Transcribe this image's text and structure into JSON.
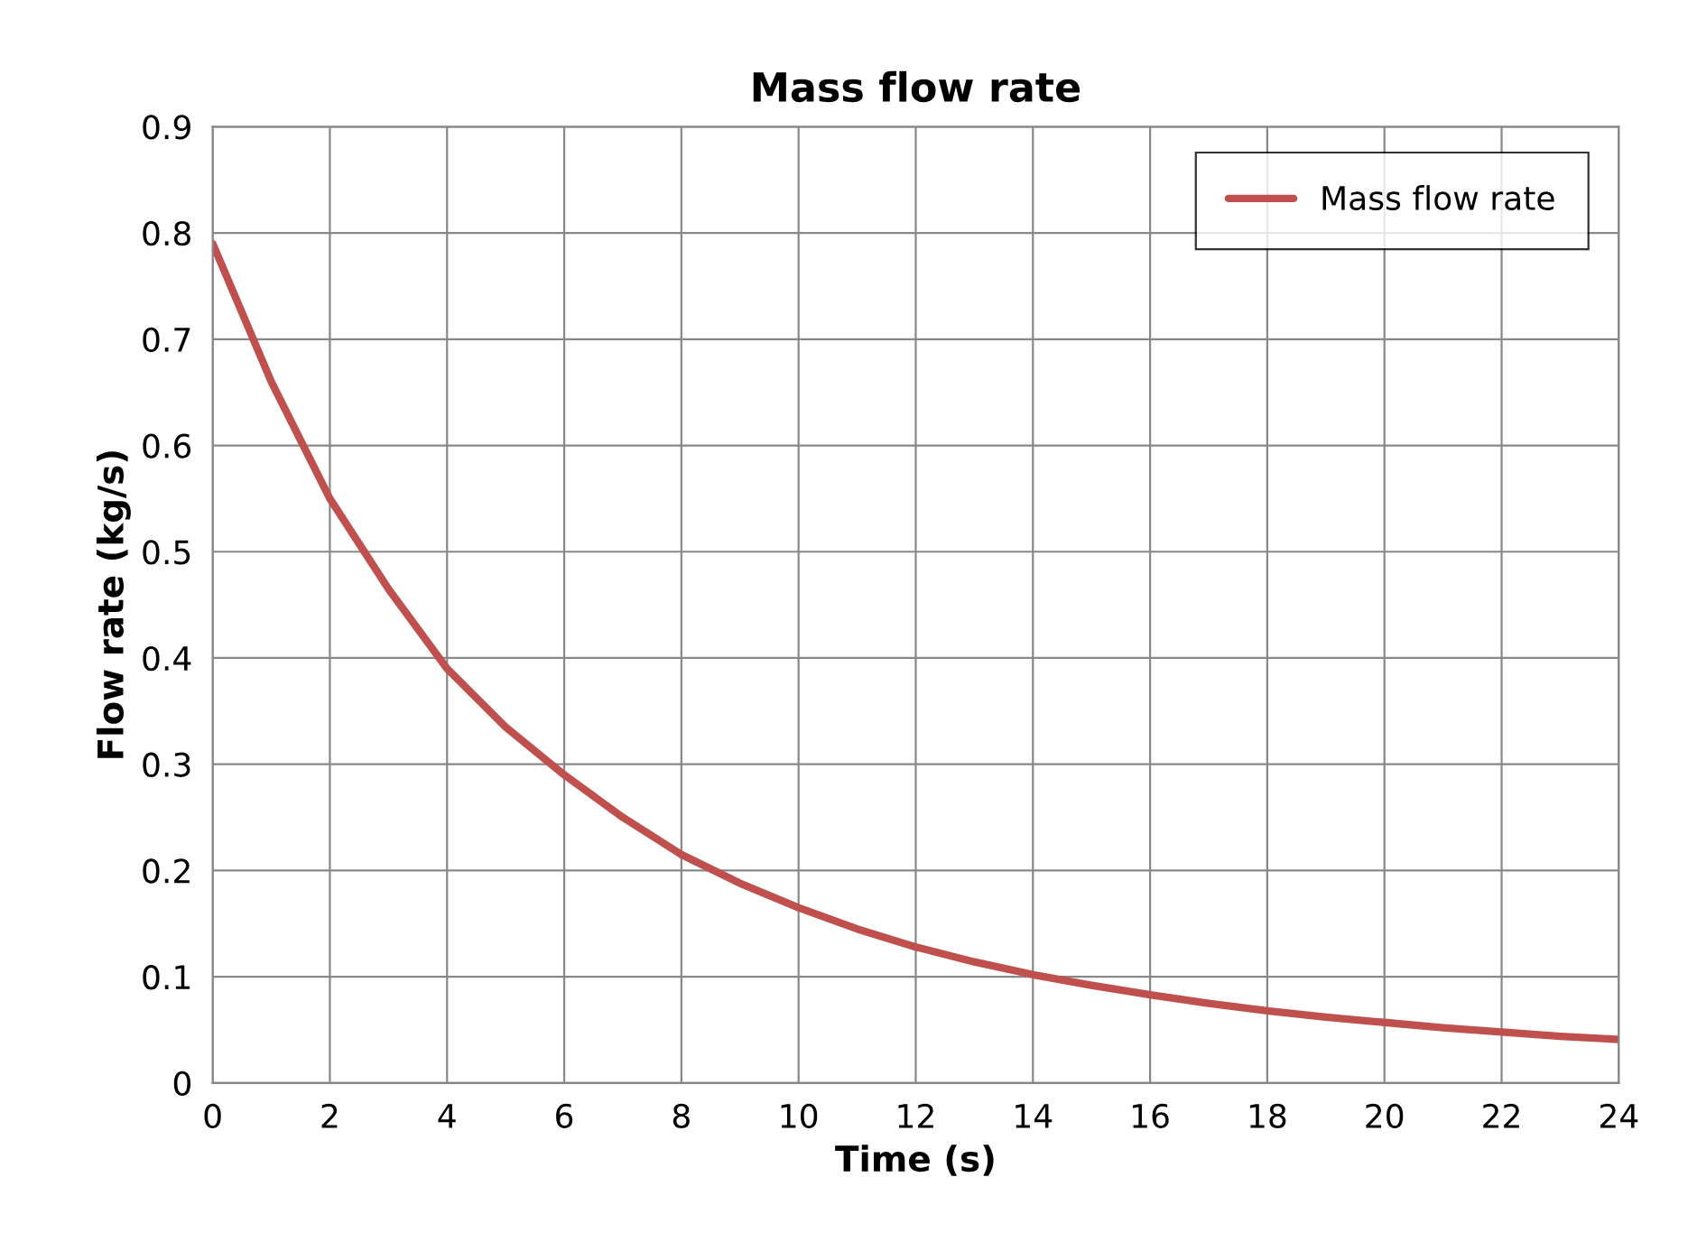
{
  "chart_data": {
    "type": "line",
    "title": "Mass flow rate",
    "xlabel": "Time (s)",
    "ylabel": "Flow rate (kg/s)",
    "x": [
      0,
      1,
      2,
      3,
      4,
      5,
      6,
      7,
      8,
      9,
      10,
      11,
      12,
      13,
      14,
      15,
      16,
      17,
      18,
      19,
      20,
      21,
      22,
      23,
      24
    ],
    "series": [
      {
        "name": "Mass flow rate",
        "color": "#c0504d",
        "values": [
          0.79,
          0.66,
          0.55,
          0.465,
          0.39,
          0.335,
          0.29,
          0.25,
          0.215,
          0.188,
          0.165,
          0.145,
          0.128,
          0.114,
          0.102,
          0.092,
          0.083,
          0.075,
          0.068,
          0.062,
          0.057,
          0.052,
          0.048,
          0.044,
          0.041
        ]
      }
    ],
    "xlim": [
      0,
      24
    ],
    "xticks": [
      0,
      2,
      4,
      6,
      8,
      10,
      12,
      14,
      16,
      18,
      20,
      22,
      24
    ],
    "ylim": [
      0,
      0.9
    ],
    "yticks": [
      0,
      0.1,
      0.2,
      0.3,
      0.4,
      0.5,
      0.6,
      0.7,
      0.8,
      0.9
    ],
    "grid": true,
    "legend": "top right",
    "marker": "none",
    "line_style": "solid"
  }
}
